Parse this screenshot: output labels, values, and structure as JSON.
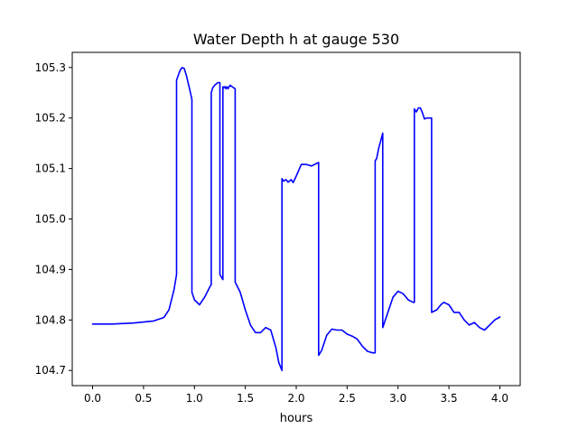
{
  "chart_data": {
    "type": "line",
    "title": "Water Depth h at gauge 530",
    "xlabel": "hours",
    "ylabel": "",
    "xlim": [
      -0.2,
      4.2
    ],
    "ylim": [
      104.67,
      105.33
    ],
    "grid": false,
    "x_ticks": [
      0.0,
      0.5,
      1.0,
      1.5,
      2.0,
      2.5,
      3.0,
      3.5,
      4.0
    ],
    "x_tick_labels": [
      "0.0",
      "0.5",
      "1.0",
      "1.5",
      "2.0",
      "2.5",
      "3.0",
      "3.5",
      "4.0"
    ],
    "y_ticks": [
      104.7,
      104.8,
      104.9,
      105.0,
      105.1,
      105.2,
      105.3
    ],
    "y_tick_labels": [
      "104.7",
      "104.8",
      "104.9",
      "105.0",
      "105.1",
      "105.2",
      "105.3"
    ],
    "series": [
      {
        "color": "#0000ff",
        "x": [
          0.0,
          0.2,
          0.4,
          0.6,
          0.7,
          0.75,
          0.8,
          0.825,
          0.825,
          0.86,
          0.88,
          0.9,
          0.92,
          0.95,
          0.975,
          0.975,
          1.0,
          1.05,
          1.1,
          1.15,
          1.165,
          1.165,
          1.18,
          1.2,
          1.23,
          1.24,
          1.25,
          1.25,
          1.28,
          1.28,
          1.29,
          1.3,
          1.31,
          1.32,
          1.33,
          1.35,
          1.37,
          1.4,
          1.4,
          1.45,
          1.5,
          1.55,
          1.6,
          1.65,
          1.7,
          1.75,
          1.8,
          1.83,
          1.86,
          1.86,
          1.875,
          1.9,
          1.92,
          1.95,
          1.97,
          2.0,
          2.05,
          2.1,
          2.15,
          2.2,
          2.22,
          2.22,
          2.25,
          2.3,
          2.35,
          2.4,
          2.45,
          2.5,
          2.55,
          2.6,
          2.65,
          2.7,
          2.75,
          2.775,
          2.775,
          2.79,
          2.8,
          2.81,
          2.83,
          2.85,
          2.85,
          2.9,
          2.95,
          3.0,
          3.05,
          3.1,
          3.15,
          3.16,
          3.16,
          3.18,
          3.2,
          3.22,
          3.24,
          3.26,
          3.28,
          3.3,
          3.33,
          3.33,
          3.38,
          3.42,
          3.45,
          3.5,
          3.55,
          3.6,
          3.65,
          3.7,
          3.75,
          3.8,
          3.85,
          3.9,
          3.95,
          4.0
        ],
        "y": [
          104.792,
          104.792,
          104.794,
          104.798,
          104.805,
          104.82,
          104.86,
          104.89,
          105.275,
          105.295,
          105.3,
          105.298,
          105.285,
          105.26,
          105.237,
          104.855,
          104.84,
          104.83,
          104.845,
          104.865,
          104.87,
          105.25,
          105.26,
          105.265,
          105.27,
          105.27,
          105.27,
          104.89,
          104.88,
          105.262,
          105.26,
          105.262,
          105.258,
          105.262,
          105.258,
          105.265,
          105.262,
          105.258,
          104.875,
          104.855,
          104.82,
          104.79,
          104.775,
          104.775,
          104.785,
          104.78,
          104.745,
          104.715,
          104.7,
          105.08,
          105.075,
          105.078,
          105.073,
          105.078,
          105.072,
          105.085,
          105.108,
          105.108,
          105.105,
          105.11,
          105.112,
          104.73,
          104.74,
          104.77,
          104.782,
          104.78,
          104.78,
          104.772,
          104.768,
          104.762,
          104.748,
          104.738,
          104.735,
          104.735,
          105.115,
          105.12,
          105.13,
          105.14,
          105.155,
          105.17,
          104.785,
          104.815,
          104.845,
          104.857,
          104.852,
          104.84,
          104.835,
          104.835,
          105.218,
          105.212,
          105.22,
          105.22,
          105.21,
          105.198,
          105.2,
          105.2,
          105.2,
          104.815,
          104.82,
          104.83,
          104.835,
          104.83,
          104.815,
          104.815,
          104.8,
          104.79,
          104.795,
          104.785,
          104.78,
          104.79,
          104.8,
          104.806
        ]
      }
    ]
  }
}
